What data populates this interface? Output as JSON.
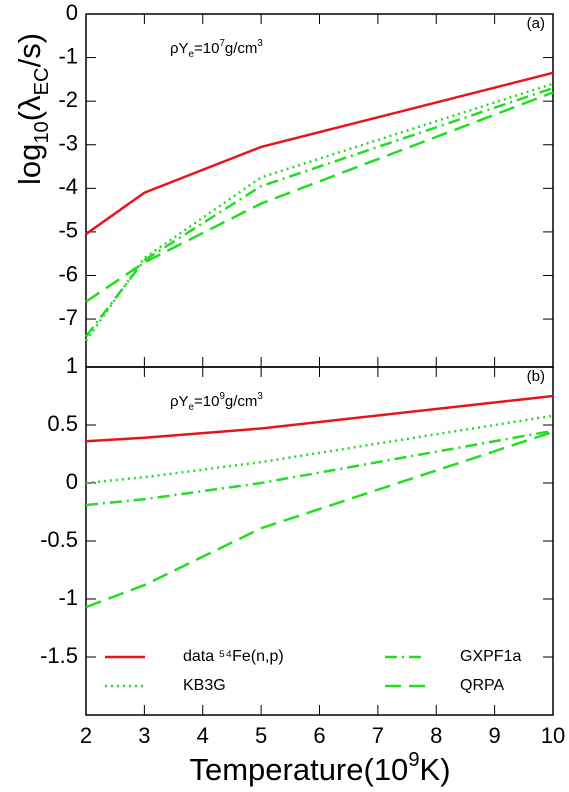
{
  "chart_data": [
    {
      "type": "line",
      "panel_label": "(a)",
      "annotation": [
        "ρY",
        "e",
        "=10",
        "7",
        "g/cm",
        "3"
      ],
      "ylabel": [
        "log",
        "10",
        "(λ",
        "EC",
        "/s)"
      ],
      "x": [
        2,
        3,
        5,
        10
      ],
      "xlim": [
        2,
        10
      ],
      "xticks": [
        2,
        3,
        4,
        5,
        6,
        7,
        8,
        9,
        10
      ],
      "ylim": [
        -8.1,
        0
      ],
      "yticks": [
        0,
        -1,
        -2,
        -3,
        -4,
        -5,
        -6,
        -7
      ],
      "series": [
        {
          "name": "data ⁵⁴Fe(n,p)",
          "color": "#e8141c",
          "style": "solid",
          "values": [
            -5.05,
            -4.1,
            -3.05,
            -1.35
          ]
        },
        {
          "name": "KB3G",
          "color": "#22dd22",
          "style": "dotted",
          "values": [
            -7.5,
            -5.6,
            -3.75,
            -1.6
          ]
        },
        {
          "name": "GXPF1a",
          "color": "#22dd22",
          "style": "dashdot",
          "values": [
            -7.4,
            -5.65,
            -3.95,
            -1.7
          ]
        },
        {
          "name": "QRPA",
          "color": "#22dd22",
          "style": "dashed",
          "values": [
            -6.6,
            -5.7,
            -4.35,
            -1.8
          ]
        }
      ]
    },
    {
      "type": "line",
      "panel_label": "(b)",
      "annotation": [
        "ρY",
        "e",
        "=10",
        "9",
        "g/cm",
        "3"
      ],
      "xlabel": [
        "Temperature(10",
        "9",
        "K)"
      ],
      "x": [
        2,
        3,
        5,
        10
      ],
      "xlim": [
        2,
        10
      ],
      "xticks": [
        2,
        3,
        4,
        5,
        6,
        7,
        8,
        9,
        10
      ],
      "ylim": [
        -2,
        1
      ],
      "yticks": [
        1,
        0.5,
        0,
        -0.5,
        -1,
        -1.5
      ],
      "legend": "bottom",
      "series": [
        {
          "name": "data ⁵⁴Fe(n,p)",
          "color": "#e8141c",
          "style": "solid",
          "values": [
            0.36,
            0.39,
            0.47,
            0.75
          ]
        },
        {
          "name": "KB3G",
          "color": "#22dd22",
          "style": "dotted",
          "values": [
            0.0,
            0.05,
            0.18,
            0.58
          ]
        },
        {
          "name": "GXPF1a",
          "color": "#22dd22",
          "style": "dashdot",
          "values": [
            -0.19,
            -0.14,
            0.0,
            0.45
          ]
        },
        {
          "name": "QRPA",
          "color": "#22dd22",
          "style": "dashed",
          "values": [
            -1.07,
            -0.88,
            -0.39,
            0.44
          ]
        }
      ]
    }
  ]
}
